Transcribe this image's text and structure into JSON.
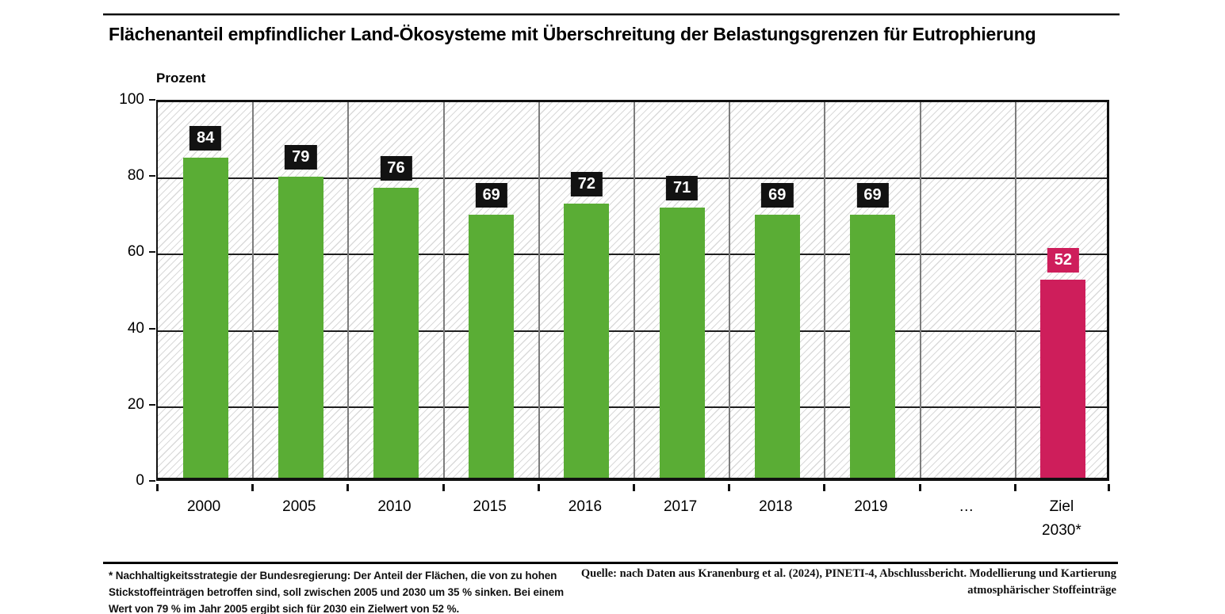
{
  "header": {
    "title": "Flächenanteil empfindlicher Land-Ökosysteme mit Überschreitung der Belastungsgrenzen für Eutrophierung"
  },
  "axis": {
    "unit_label": "Prozent"
  },
  "colors": {
    "bar_default": "#5aad35",
    "bar_target": "#ce1e5b",
    "value_box_default": "#121212",
    "value_box_target": "#ce1e5b",
    "grid_vertical": "#7d7d7d",
    "grid_horizontal": "#1f1f1f"
  },
  "chart_data": {
    "type": "bar",
    "title": "Flächenanteil empfindlicher Land-Ökosysteme mit Überschreitung der Belastungsgrenzen für Eutrophierung",
    "ylabel": "Prozent",
    "ylim": [
      0,
      100
    ],
    "yticks": [
      0,
      20,
      40,
      60,
      80,
      100
    ],
    "grid": true,
    "legend": "none",
    "categories": [
      "2000",
      "2005",
      "2010",
      "2015",
      "2016",
      "2017",
      "2018",
      "2019",
      "…",
      "Ziel\n2030*"
    ],
    "values": [
      84,
      79,
      76,
      69,
      72,
      71,
      69,
      69,
      null,
      52
    ],
    "bar_roles": [
      "default",
      "default",
      "default",
      "default",
      "default",
      "default",
      "default",
      "default",
      "none",
      "target"
    ],
    "value_labels": [
      "84",
      "79",
      "76",
      "69",
      "72",
      "71",
      "69",
      "69",
      "",
      "52"
    ]
  },
  "footnotes": {
    "left_lines": [
      "* Nachhaltigkeitsstrategie der Bundesregierung: Der Anteil der Flächen, die von zu hohen",
      "Stickstoffeinträgen betroffen sind, soll zwischen 2005 und 2030 um 35 % sinken. Bei einem",
      "Wert von 79 % im Jahr 2005 ergibt sich für 2030 ein Zielwert von 52 %."
    ],
    "right_lines": [
      "Quelle: nach Daten aus Kranenburg et al. (2024), PINETI-4, Abschlussbericht. Modellierung und Kartierung",
      "atmosphärischer Stoffeinträge"
    ]
  }
}
